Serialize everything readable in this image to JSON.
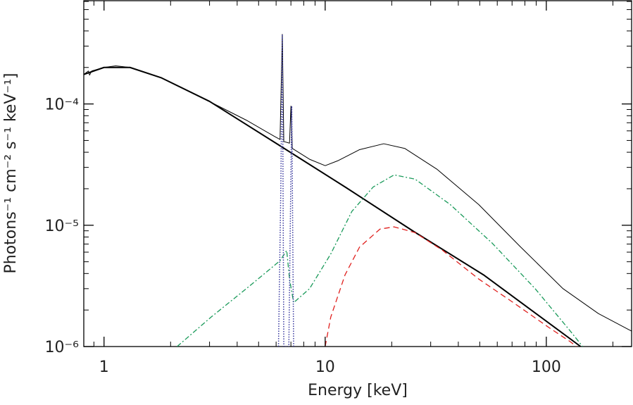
{
  "chart_data": {
    "type": "line",
    "xlabel": "Energy [keV]",
    "ylabel": "Photons⁻¹ cm⁻² s⁻¹ keV⁻¹]",
    "xlog": true,
    "ylog": true,
    "xlim": [
      0.81,
      243
    ],
    "ylim": [
      1e-06,
      0.00071
    ],
    "xticks": [
      1,
      10,
      100
    ],
    "xminorticks": [
      0.9,
      2,
      3,
      4,
      5,
      6,
      7,
      8,
      9,
      20,
      30,
      40,
      50,
      60,
      70,
      80,
      90,
      200
    ],
    "yticks": [
      {
        "value": 1e-06,
        "label": "10⁻⁶"
      },
      {
        "value": 1e-05,
        "label": "10⁻⁵"
      },
      {
        "value": 0.0001,
        "label": "10⁻⁴"
      }
    ],
    "yminorticks": [
      2e-06,
      3e-06,
      4e-06,
      5e-06,
      6e-06,
      7e-06,
      8e-06,
      9e-06,
      2e-05,
      3e-05,
      4e-05,
      5e-05,
      6e-05,
      7e-05,
      8e-05,
      9e-05,
      0.0002,
      0.0003,
      0.0004,
      0.0005,
      0.0006,
      0.0007
    ],
    "series": [
      {
        "color": "#000000",
        "style": "solid",
        "width": 1,
        "x": [
          0.81,
          0.85,
          0.86,
          0.88,
          1.0,
          1.13,
          1.31,
          1.82,
          3.05,
          4.4,
          5.9,
          6.25,
          6.4,
          6.5,
          6.9,
          7.0,
          7.1,
          8.5,
          10,
          11.4,
          14.3,
          18.4,
          22.9,
          32,
          49.5,
          76,
          119,
          172,
          243
        ],
        "values": [
          0.000175,
          0.000187,
          0.000173,
          0.000187,
          0.0002,
          0.000206,
          0.0002,
          0.000164,
          0.000103,
          7.35e-05,
          5.4e-05,
          5.1e-05,
          0.000375,
          4.9e-05,
          4.75e-05,
          9.6e-05,
          4.3e-05,
          3.5e-05,
          3.1e-05,
          3.4e-05,
          4.2e-05,
          4.7e-05,
          4.3e-05,
          2.9e-05,
          1.48e-05,
          6.7e-06,
          3e-06,
          1.87e-06,
          1.34e-06
        ]
      },
      {
        "color": "#000000",
        "style": "solid",
        "width": 2,
        "x": [
          0.81,
          1.0,
          1.31,
          1.82,
          3.0,
          6.1,
          12.4,
          25.1,
          52,
          143
        ],
        "values": [
          0.000175,
          0.0002,
          0.0002,
          0.000164,
          0.000105,
          4.65e-05,
          2.05e-05,
          8.9e-06,
          3.9e-06,
          1e-06
        ]
      },
      {
        "color": "#e0201e",
        "style": "dashed",
        "width": 1.3,
        "x": [
          10,
          10.6,
          12.3,
          14.3,
          17.7,
          20.5,
          25.5,
          34,
          49.5,
          71,
          103,
          128,
          137
        ],
        "values": [
          1e-06,
          1.75e-06,
          3.9e-06,
          6.6e-06,
          9.3e-06,
          9.7e-06,
          8.7e-06,
          6.2e-06,
          3.6e-06,
          2.3e-06,
          1.43e-06,
          1.1e-06,
          1e-06
        ]
      },
      {
        "color": "#1a9a5a",
        "style": "dashdot",
        "width": 1.3,
        "x": [
          2.14,
          3.05,
          4.4,
          5.5,
          6.25,
          6.7,
          6.9,
          7.2,
          8.5,
          10.6,
          13.2,
          16.5,
          20.5,
          25.5,
          36.8,
          57,
          89,
          128,
          146
        ],
        "values": [
          1e-06,
          1.75e-06,
          3e-06,
          4.2e-06,
          5.1e-06,
          6.2e-06,
          3.6e-06,
          2.3e-06,
          3e-06,
          5.8e-06,
          1.3e-05,
          2.07e-05,
          2.6e-05,
          2.4e-05,
          1.48e-05,
          7.1e-06,
          3e-06,
          1.35e-06,
          1e-06
        ]
      },
      {
        "color": "#3a3aa0",
        "style": "dotted",
        "width": 1.5,
        "x": [
          6.15,
          6.3,
          6.4,
          6.5,
          6.85,
          7.06,
          7.2
        ],
        "values": [
          1e-06,
          1.9e-05,
          0.000375,
          1e-06,
          1e-06,
          9.6e-05,
          1e-06
        ]
      }
    ]
  }
}
